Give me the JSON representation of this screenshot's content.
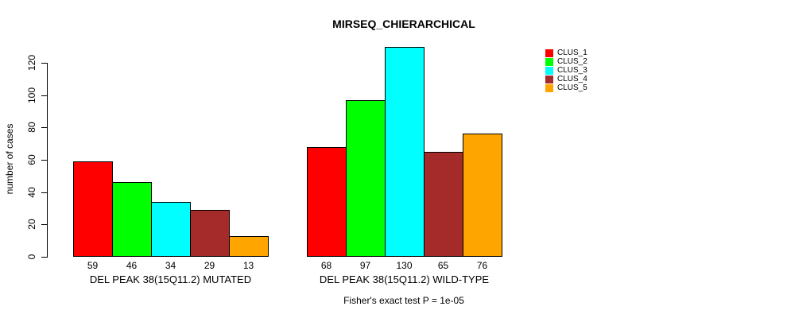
{
  "chart_data": {
    "type": "bar",
    "title": "MIRSEQ_CHIERARCHICAL",
    "ylabel": "number of cases",
    "xlabel": "",
    "ylim": [
      0,
      130
    ],
    "yticks": [
      0,
      20,
      40,
      60,
      80,
      100,
      120
    ],
    "grid": false,
    "bar_value_labels": true,
    "categories": [
      "DEL PEAK 38(15Q11.2) MUTATED",
      "DEL PEAK 38(15Q11.2) WILD-TYPE"
    ],
    "series": [
      {
        "name": "CLUS_1",
        "color": "#ff0000",
        "values": [
          59,
          68
        ]
      },
      {
        "name": "CLUS_2",
        "color": "#00ff00",
        "values": [
          46,
          97
        ]
      },
      {
        "name": "CLUS_3",
        "color": "#00ffff",
        "values": [
          34,
          130
        ]
      },
      {
        "name": "CLUS_4",
        "color": "#a52a2a",
        "values": [
          29,
          65
        ]
      },
      {
        "name": "CLUS_5",
        "color": "#ffa500",
        "values": [
          13,
          76
        ]
      }
    ],
    "legend_position": "right",
    "annotation": "Fisher's exact test P = 1e-05"
  }
}
